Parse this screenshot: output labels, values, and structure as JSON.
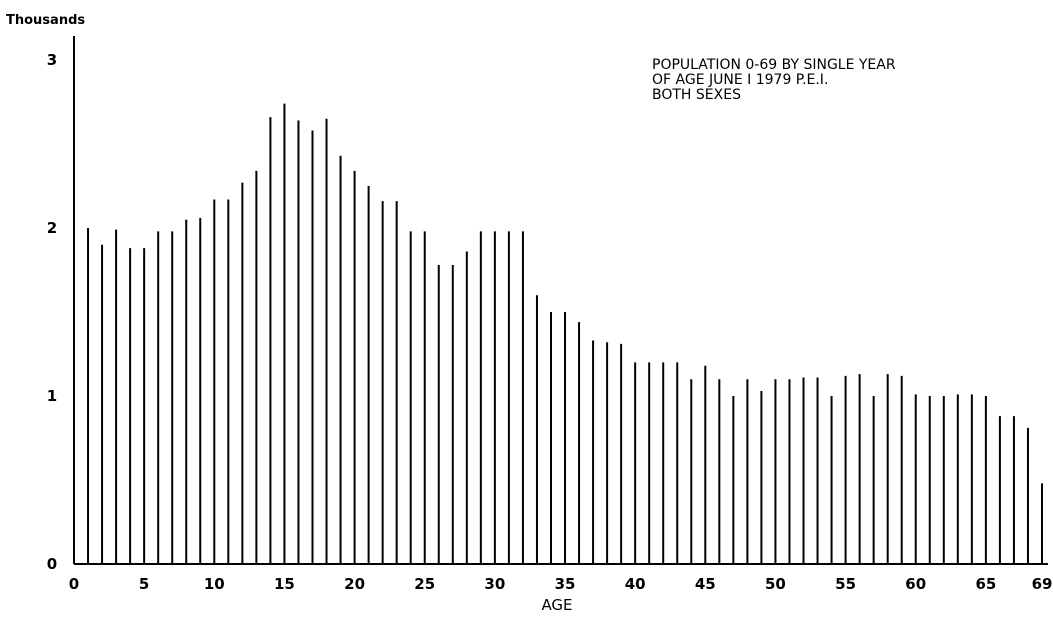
{
  "chart_data": {
    "type": "bar",
    "title_lines": [
      "POPULATION 0-69 BY SINGLE YEAR",
      "OF AGE JUNE I 1979 P.E.I.",
      "BOTH SEXES"
    ],
    "xlabel": "AGE",
    "ylabel": "Thousands",
    "x_ticks": [
      "0",
      "5",
      "10",
      "15",
      "20",
      "25",
      "30",
      "35",
      "40",
      "45",
      "50",
      "55",
      "60",
      "65",
      "69"
    ],
    "x_tick_values": [
      0,
      5,
      10,
      15,
      20,
      25,
      30,
      35,
      40,
      45,
      50,
      55,
      60,
      65,
      69
    ],
    "y_ticks": [
      "0",
      "1",
      "2",
      "3"
    ],
    "y_tick_values": [
      0,
      1,
      2,
      3
    ],
    "xlim": [
      0,
      69
    ],
    "ylim": [
      0,
      3
    ],
    "grid": false,
    "bar_style": "thin vertical line",
    "bar_color": "#000000",
    "ages": [
      1,
      2,
      3,
      4,
      5,
      6,
      7,
      8,
      9,
      10,
      11,
      12,
      13,
      14,
      15,
      16,
      17,
      18,
      19,
      20,
      21,
      22,
      23,
      24,
      25,
      26,
      27,
      28,
      29,
      30,
      31,
      32,
      33,
      34,
      35,
      36,
      37,
      38,
      39,
      40,
      41,
      42,
      43,
      44,
      45,
      46,
      47,
      48,
      49,
      50,
      51,
      52,
      53,
      54,
      55,
      56,
      57,
      58,
      59,
      60,
      61,
      62,
      63,
      64,
      65,
      66,
      67,
      68,
      69
    ],
    "values": [
      2.0,
      1.9,
      1.99,
      1.88,
      1.88,
      1.98,
      1.98,
      2.05,
      2.06,
      2.17,
      2.17,
      2.27,
      2.34,
      2.66,
      2.74,
      2.64,
      2.58,
      2.65,
      2.43,
      2.34,
      2.25,
      2.16,
      2.16,
      1.98,
      1.98,
      1.78,
      1.78,
      1.86,
      1.98,
      1.98,
      1.98,
      1.98,
      1.6,
      1.5,
      1.5,
      1.44,
      1.33,
      1.32,
      1.31,
      1.2,
      1.2,
      1.2,
      1.2,
      1.1,
      1.18,
      1.1,
      1.0,
      1.1,
      1.03,
      1.1,
      1.1,
      1.11,
      1.11,
      1.0,
      1.12,
      1.13,
      1.0,
      1.13,
      1.12,
      1.01,
      1.0,
      1.0,
      1.01,
      1.01,
      1.0,
      0.88,
      0.88,
      0.81,
      0.48
    ]
  }
}
